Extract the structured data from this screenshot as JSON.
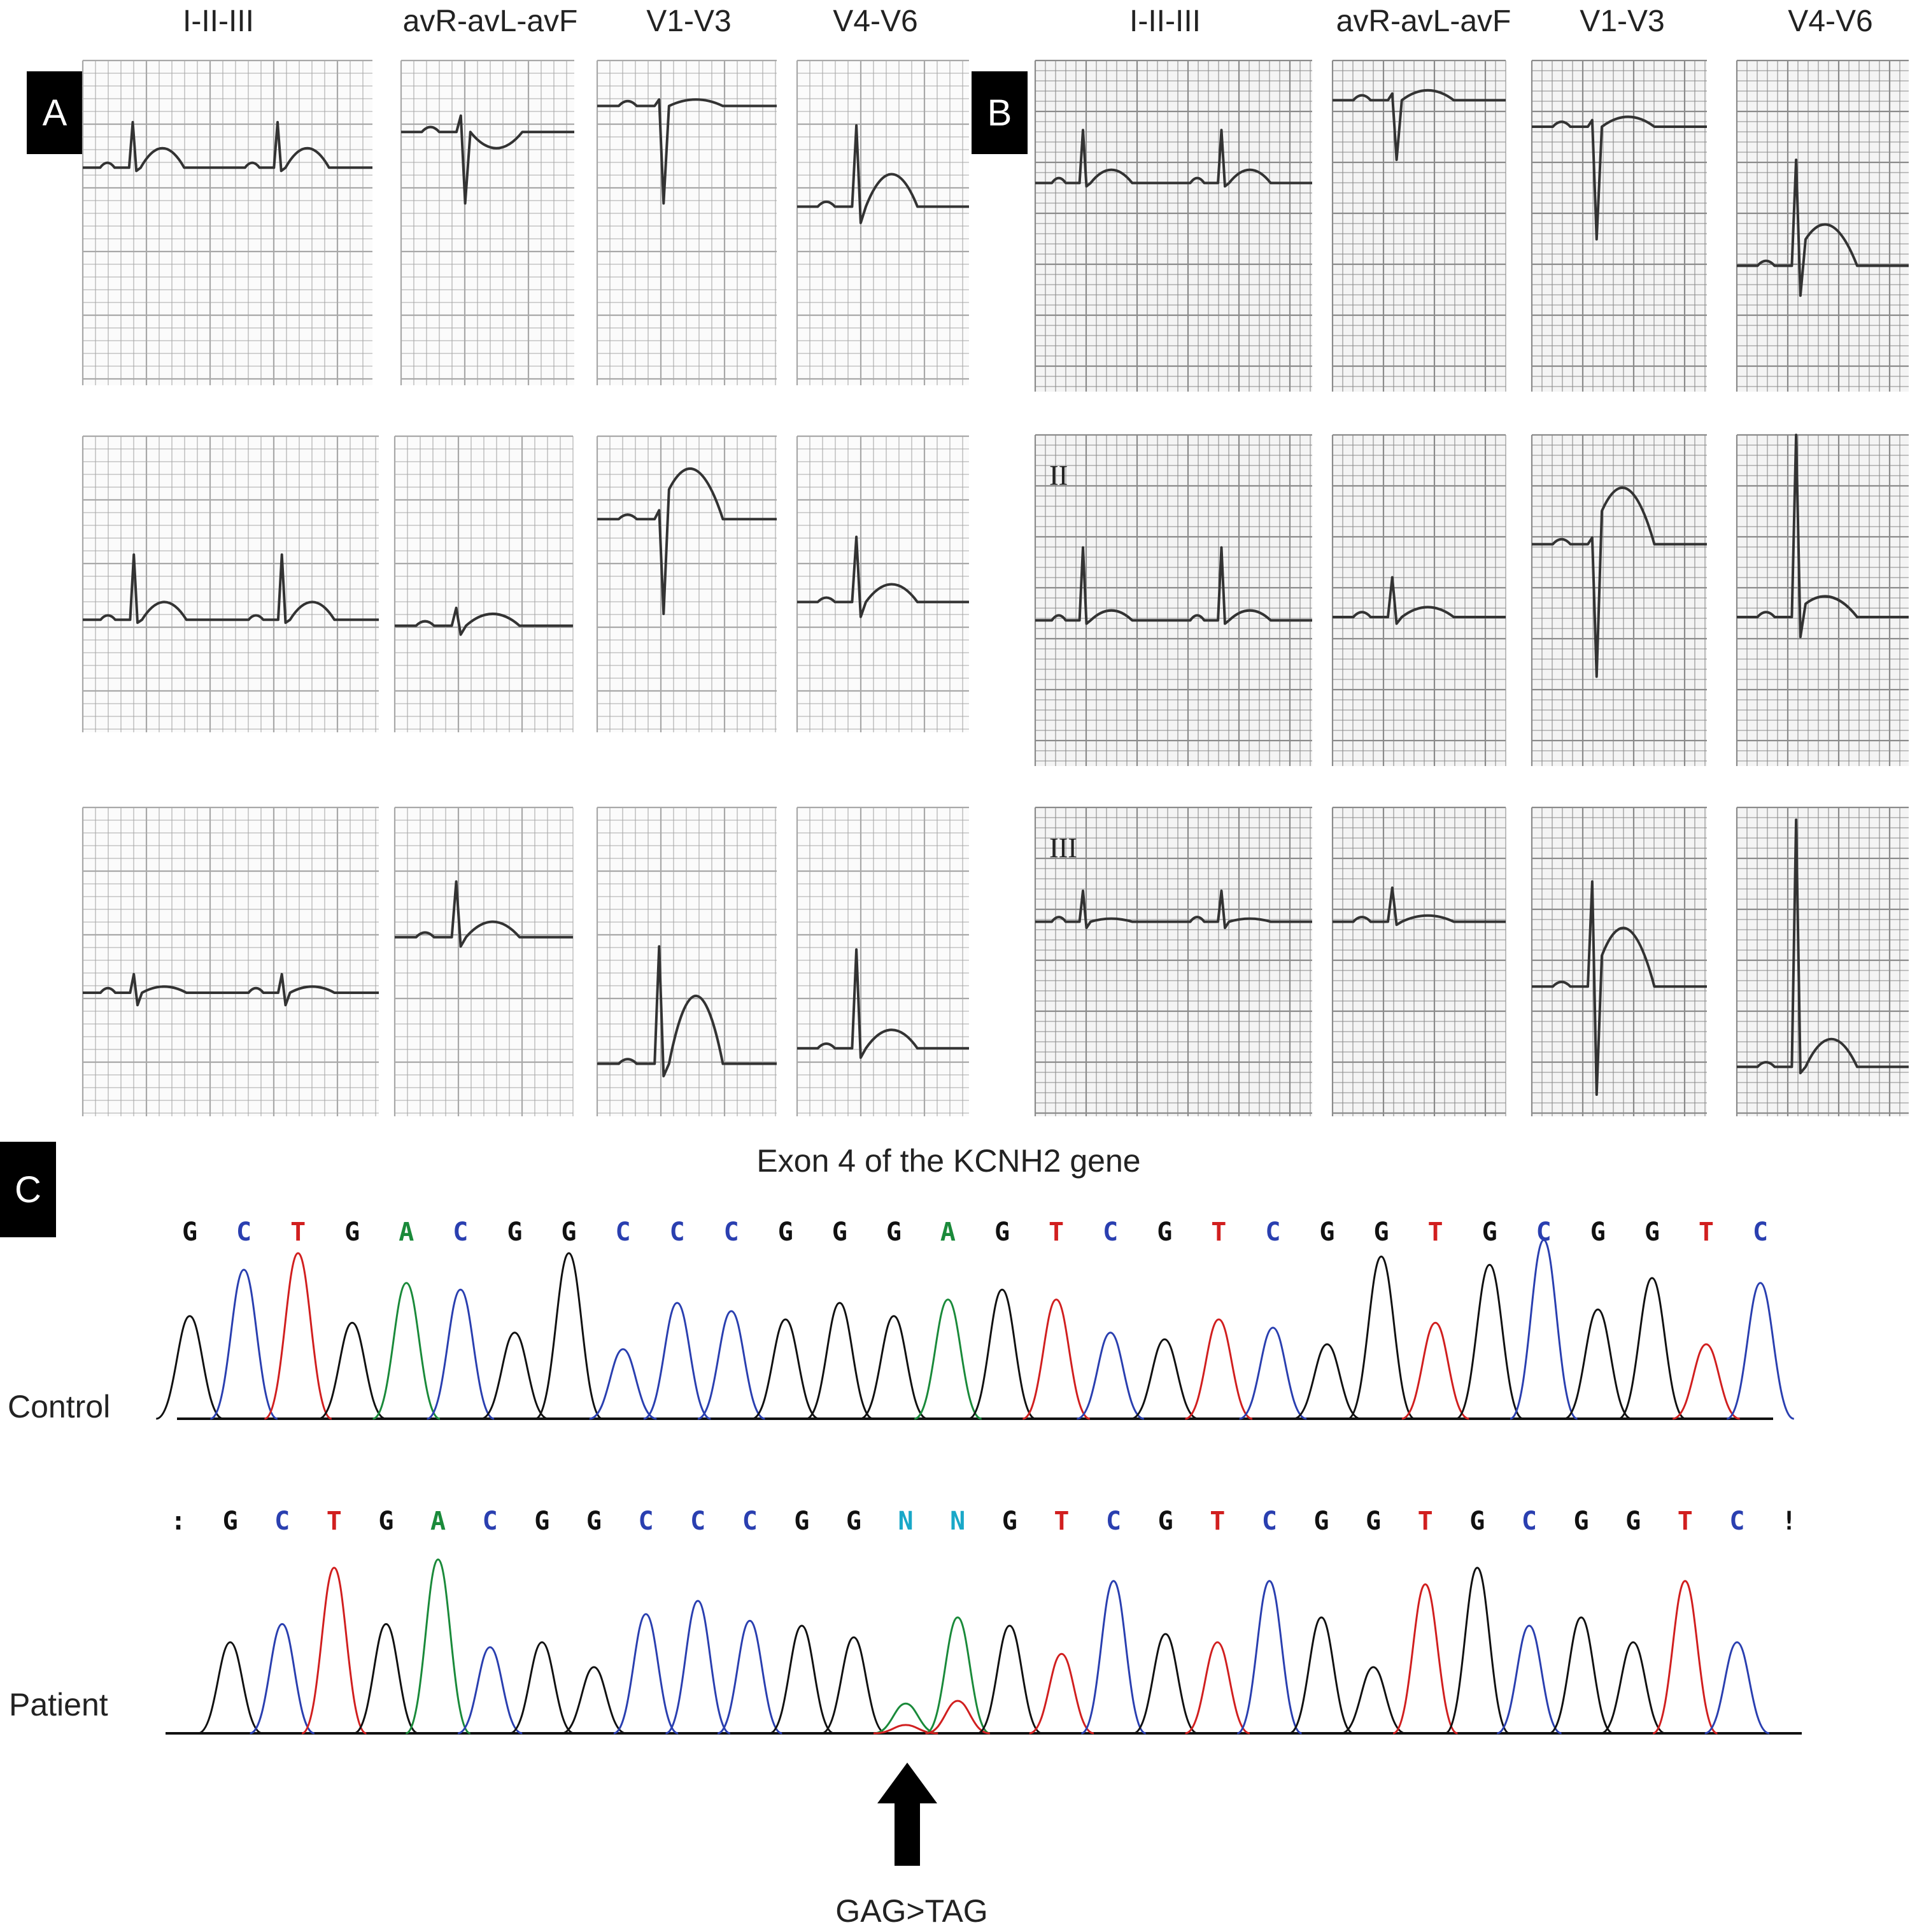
{
  "panels": {
    "a": {
      "badge": "A"
    },
    "b": {
      "badge": "B"
    },
    "c": {
      "badge": "C"
    }
  },
  "ecg_headers": {
    "a": [
      "I-II-III",
      "avR-avL-avF",
      "V1-V3",
      "V4-V6"
    ],
    "b": [
      "I-II-III",
      "avR-avL-avF",
      "V1-V3",
      "V4-V6"
    ]
  },
  "lead_marks": {
    "b_row2": "II",
    "b_row3": "III"
  },
  "sequencing": {
    "title": "Exon 4 of the KCNH2 gene",
    "control_label": "Control",
    "patient_label": "Patient",
    "control_bases": [
      "G",
      "C",
      "T",
      "G",
      "A",
      "C",
      "G",
      "G",
      "C",
      "C",
      "C",
      "G",
      "G",
      "G",
      "A",
      "G",
      "T",
      "C",
      "G",
      "T",
      "C",
      "G",
      "G",
      "T",
      "G",
      "C",
      "G",
      "G",
      "T",
      "C"
    ],
    "patient_bases": [
      ":",
      "G",
      "C",
      "T",
      "G",
      "A",
      "C",
      "G",
      "G",
      "C",
      "C",
      "C",
      "G",
      "G",
      "N",
      "N",
      "G",
      "T",
      "C",
      "G",
      "T",
      "C",
      "G",
      "G",
      "T",
      "G",
      "C",
      "G",
      "G",
      "T",
      "C",
      "!"
    ],
    "mutation_label": "GAG>TAG",
    "base_colors": {
      "G": "#111111",
      "C": "#2a3fb0",
      "T": "#d11f1f",
      "A": "#1a8a3a",
      "N": "#1aa8c8",
      ":": "#111111",
      "!": "#111111"
    }
  }
}
